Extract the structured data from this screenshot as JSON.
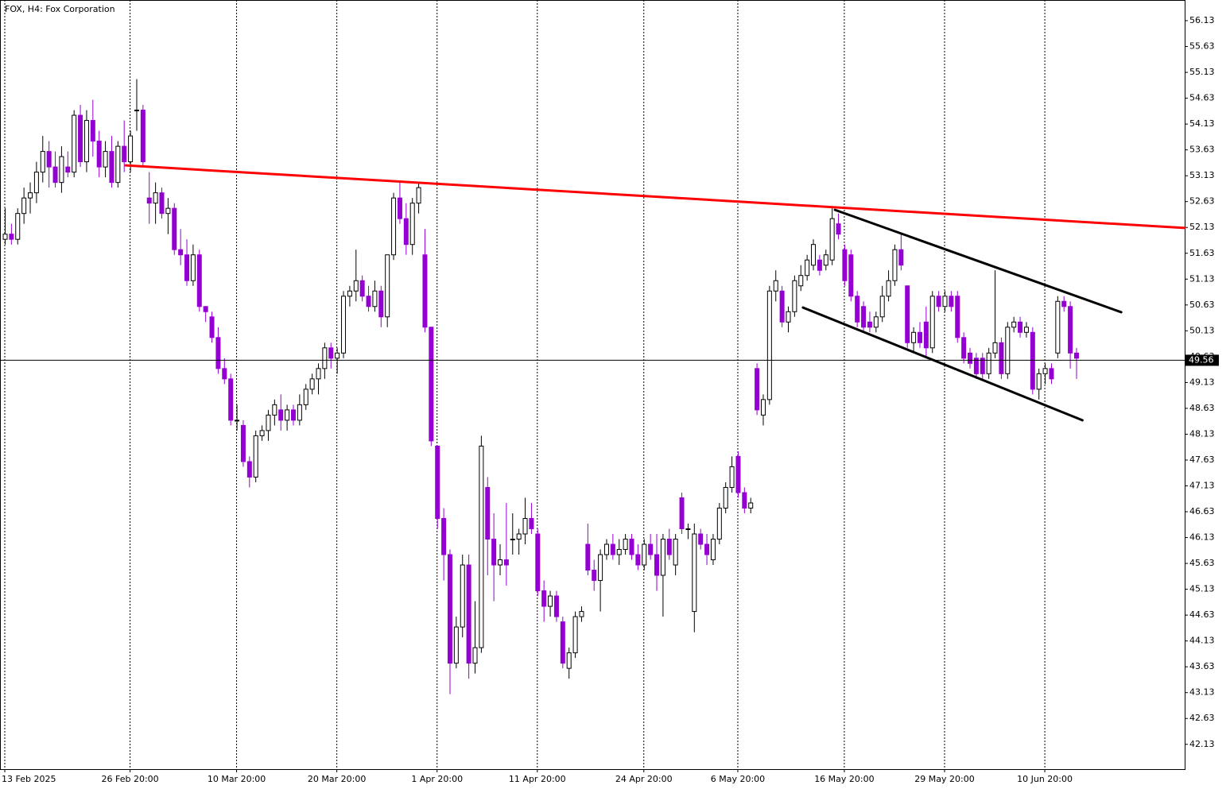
{
  "chart_data": {
    "type": "candlestick",
    "title": "FOX, H4:  Fox Corporation",
    "bull_color": "#ffffff",
    "bear_color": "#9400d3",
    "outline_color": "#000000",
    "ylim": [
      41.65,
      56.53
    ],
    "yticks": [
      56.13,
      55.63,
      55.13,
      54.63,
      54.13,
      53.63,
      53.13,
      52.63,
      52.13,
      51.63,
      51.13,
      50.63,
      50.13,
      49.63,
      49.13,
      48.63,
      48.13,
      47.63,
      47.13,
      46.63,
      46.13,
      45.63,
      45.13,
      44.63,
      44.13,
      43.63,
      43.13,
      42.63,
      42.13
    ],
    "current_price": 49.56,
    "categories": [
      "13 Feb 2025",
      null,
      null,
      null,
      null,
      null,
      null,
      null,
      null,
      null,
      null,
      null,
      null,
      null,
      null,
      null,
      null,
      null,
      null,
      null,
      "26 Feb 20:00",
      null,
      null,
      null,
      null,
      null,
      null,
      null,
      null,
      null,
      null,
      null,
      null,
      null,
      null,
      null,
      null,
      "10 Mar 20:00",
      null,
      null,
      null,
      null,
      null,
      null,
      null,
      null,
      null,
      null,
      null,
      null,
      null,
      null,
      null,
      "20 Mar 20:00",
      null,
      null,
      null,
      null,
      null,
      null,
      null,
      null,
      null,
      null,
      null,
      null,
      null,
      null,
      null,
      "1 Apr 20:00",
      null,
      null,
      null,
      null,
      null,
      null,
      null,
      null,
      null,
      null,
      null,
      null,
      null,
      null,
      null,
      "11 Apr 20:00",
      null,
      null,
      null,
      null,
      null,
      null,
      null,
      null,
      null,
      null,
      null,
      null,
      null,
      null,
      null,
      null,
      "24 Apr 20:00",
      null,
      null,
      null,
      null,
      null,
      null,
      null,
      null,
      null,
      null,
      null,
      null,
      null,
      null,
      "6 May 20:00",
      null,
      null,
      null,
      null,
      null,
      null,
      null,
      null,
      null,
      null,
      null,
      null,
      null,
      null,
      null,
      null,
      "16 May 20:00",
      null,
      null,
      null,
      null,
      null,
      null,
      null,
      null,
      null,
      null,
      null,
      null,
      null,
      null,
      null,
      "29 May 20:00",
      null,
      null,
      null,
      null,
      null,
      null,
      null,
      null,
      null,
      null,
      null,
      null,
      null,
      null,
      null,
      "10 Jun 20:00",
      null,
      null,
      null,
      null,
      null
    ],
    "candles": [
      [
        51.9,
        52.5,
        51.8,
        52.0
      ],
      [
        52.0,
        52.2,
        51.8,
        51.9
      ],
      [
        51.9,
        52.5,
        51.8,
        52.4
      ],
      [
        52.4,
        52.9,
        52.2,
        52.7
      ],
      [
        52.7,
        53.0,
        52.4,
        52.8
      ],
      [
        52.8,
        53.4,
        52.6,
        53.2
      ],
      [
        53.2,
        53.9,
        53.0,
        53.6
      ],
      [
        53.6,
        53.8,
        52.9,
        53.3
      ],
      [
        53.3,
        53.6,
        52.9,
        53.0
      ],
      [
        53.0,
        53.7,
        52.8,
        53.5
      ],
      [
        53.3,
        53.6,
        53.1,
        53.2
      ],
      [
        53.2,
        54.4,
        53.1,
        54.3
      ],
      [
        54.3,
        54.5,
        53.3,
        53.4
      ],
      [
        53.4,
        54.4,
        53.2,
        54.2
      ],
      [
        54.2,
        54.6,
        53.5,
        53.8
      ],
      [
        53.8,
        54.0,
        53.1,
        53.3
      ],
      [
        53.3,
        53.8,
        53.1,
        53.6
      ],
      [
        53.6,
        53.9,
        52.9,
        53.0
      ],
      [
        53.0,
        53.8,
        52.9,
        53.7
      ],
      [
        53.7,
        54.2,
        53.2,
        53.4
      ],
      [
        53.4,
        54.0,
        53.2,
        53.9
      ],
      [
        54.4,
        55.0,
        54.0,
        54.4
      ],
      [
        54.4,
        54.5,
        53.3,
        53.4
      ],
      [
        52.7,
        53.2,
        52.2,
        52.6
      ],
      [
        52.6,
        53.0,
        52.2,
        52.8
      ],
      [
        52.8,
        52.9,
        52.3,
        52.4
      ],
      [
        52.4,
        52.7,
        52.0,
        52.5
      ],
      [
        52.5,
        52.6,
        51.6,
        51.7
      ],
      [
        51.7,
        52.1,
        51.4,
        51.6
      ],
      [
        51.6,
        51.9,
        51.0,
        51.1
      ],
      [
        51.1,
        51.8,
        51.0,
        51.6
      ],
      [
        51.6,
        51.7,
        50.5,
        50.6
      ],
      [
        50.6,
        50.6,
        50.3,
        50.5
      ],
      [
        50.4,
        50.5,
        49.9,
        50.0
      ],
      [
        50.0,
        50.2,
        49.3,
        49.4
      ],
      [
        49.4,
        49.6,
        49.1,
        49.2
      ],
      [
        49.2,
        49.3,
        48.3,
        48.4
      ],
      [
        48.4,
        48.7,
        48.2,
        48.4
      ],
      [
        48.3,
        48.4,
        47.5,
        47.6
      ],
      [
        47.6,
        47.7,
        47.1,
        47.3
      ],
      [
        47.3,
        48.2,
        47.2,
        48.1
      ],
      [
        48.1,
        48.3,
        48.0,
        48.2
      ],
      [
        48.2,
        48.6,
        48.0,
        48.5
      ],
      [
        48.5,
        48.8,
        48.3,
        48.7
      ],
      [
        48.6,
        48.9,
        48.2,
        48.4
      ],
      [
        48.4,
        48.7,
        48.2,
        48.6
      ],
      [
        48.6,
        48.7,
        48.3,
        48.4
      ],
      [
        48.4,
        48.9,
        48.3,
        48.7
      ],
      [
        48.7,
        49.1,
        48.6,
        49.0
      ],
      [
        49.0,
        49.3,
        48.9,
        49.2
      ],
      [
        49.2,
        49.5,
        48.9,
        49.4
      ],
      [
        49.4,
        49.9,
        49.2,
        49.8
      ],
      [
        49.8,
        49.9,
        49.4,
        49.6
      ],
      [
        49.6,
        49.8,
        49.3,
        49.7
      ],
      [
        49.7,
        50.9,
        49.6,
        50.8
      ],
      [
        50.8,
        51.0,
        50.6,
        50.9
      ],
      [
        50.9,
        51.7,
        50.7,
        51.1
      ],
      [
        51.1,
        51.2,
        50.7,
        50.8
      ],
      [
        50.8,
        51.0,
        50.5,
        50.6
      ],
      [
        50.6,
        51.1,
        50.5,
        50.9
      ],
      [
        50.9,
        51.0,
        50.2,
        50.4
      ],
      [
        50.4,
        51.6,
        50.2,
        51.6
      ],
      [
        51.6,
        52.8,
        51.5,
        52.7
      ],
      [
        52.7,
        53.0,
        52.2,
        52.3
      ],
      [
        52.3,
        52.6,
        51.6,
        51.8
      ],
      [
        51.8,
        52.7,
        51.6,
        52.6
      ],
      [
        52.6,
        53.0,
        52.4,
        52.9
      ],
      [
        51.6,
        52.1,
        50.1,
        50.2
      ],
      [
        50.2,
        50.2,
        47.9,
        48.0
      ],
      [
        47.9,
        47.9,
        46.3,
        46.5
      ],
      [
        46.5,
        46.7,
        45.3,
        45.8
      ],
      [
        45.8,
        45.9,
        43.1,
        43.7
      ],
      [
        43.7,
        44.6,
        43.6,
        44.4
      ],
      [
        44.4,
        45.8,
        44.2,
        45.6
      ],
      [
        45.6,
        45.8,
        43.4,
        43.7
      ],
      [
        43.7,
        44.9,
        43.5,
        44.0
      ],
      [
        44.0,
        48.1,
        43.9,
        47.9
      ],
      [
        47.1,
        47.3,
        45.4,
        46.1
      ],
      [
        46.1,
        46.6,
        44.9,
        45.6
      ],
      [
        45.6,
        46.0,
        45.4,
        45.7
      ],
      [
        45.7,
        46.8,
        45.2,
        45.6
      ],
      [
        46.1,
        46.6,
        45.8,
        46.1
      ],
      [
        46.1,
        46.3,
        45.8,
        46.2
      ],
      [
        46.2,
        46.9,
        46.0,
        46.5
      ],
      [
        46.5,
        46.8,
        46.2,
        46.3
      ],
      [
        46.2,
        46.3,
        45.0,
        45.1
      ],
      [
        45.1,
        45.3,
        44.5,
        44.8
      ],
      [
        44.8,
        45.1,
        44.6,
        45.0
      ],
      [
        45.0,
        45.1,
        44.5,
        44.6
      ],
      [
        44.5,
        44.6,
        43.6,
        43.7
      ],
      [
        43.6,
        44.0,
        43.4,
        43.9
      ],
      [
        43.9,
        44.7,
        43.8,
        44.6
      ],
      [
        44.6,
        44.8,
        44.5,
        44.7
      ],
      [
        46.0,
        46.4,
        45.4,
        45.5
      ],
      [
        45.5,
        45.7,
        45.1,
        45.3
      ],
      [
        45.3,
        45.9,
        44.7,
        45.8
      ],
      [
        45.8,
        46.1,
        45.7,
        46.0
      ],
      [
        46.0,
        46.2,
        45.7,
        45.8
      ],
      [
        45.8,
        46.1,
        45.6,
        45.9
      ],
      [
        45.9,
        46.2,
        45.8,
        46.1
      ],
      [
        46.1,
        46.2,
        45.7,
        45.8
      ],
      [
        45.8,
        46.0,
        45.5,
        45.6
      ],
      [
        45.6,
        46.1,
        45.5,
        46.0
      ],
      [
        46.0,
        46.2,
        45.7,
        45.8
      ],
      [
        45.8,
        46.2,
        45.1,
        45.4
      ],
      [
        45.4,
        46.2,
        44.6,
        46.1
      ],
      [
        46.1,
        46.3,
        45.7,
        45.8
      ],
      [
        45.6,
        46.2,
        45.4,
        46.1
      ],
      [
        46.9,
        47.0,
        46.2,
        46.3
      ],
      [
        46.3,
        46.4,
        46.1,
        46.3
      ],
      [
        44.7,
        46.4,
        44.3,
        46.2
      ],
      [
        46.2,
        46.3,
        45.9,
        46.0
      ],
      [
        46.0,
        46.2,
        45.6,
        45.8
      ],
      [
        45.7,
        46.2,
        45.6,
        46.1
      ],
      [
        46.1,
        46.8,
        46.0,
        46.7
      ],
      [
        46.7,
        47.2,
        46.6,
        47.1
      ],
      [
        47.1,
        47.7,
        47.0,
        47.5
      ],
      [
        47.7,
        47.8,
        46.9,
        47.0
      ],
      [
        47.0,
        47.1,
        46.6,
        46.7
      ],
      [
        46.7,
        46.9,
        46.6,
        46.8
      ],
      [
        49.4,
        49.5,
        48.5,
        48.6
      ],
      [
        48.5,
        48.9,
        48.3,
        48.8
      ],
      [
        48.8,
        51.0,
        48.7,
        50.9
      ],
      [
        50.9,
        51.3,
        50.7,
        51.1
      ],
      [
        50.9,
        51.0,
        50.2,
        50.3
      ],
      [
        50.3,
        50.6,
        50.1,
        50.5
      ],
      [
        50.5,
        51.2,
        50.4,
        51.1
      ],
      [
        51.0,
        51.4,
        50.9,
        51.2
      ],
      [
        51.2,
        51.6,
        51.1,
        51.5
      ],
      [
        51.4,
        51.9,
        51.3,
        51.8
      ],
      [
        51.5,
        51.6,
        51.2,
        51.3
      ],
      [
        51.4,
        51.7,
        51.3,
        51.6
      ],
      [
        51.5,
        52.5,
        51.4,
        52.3
      ],
      [
        52.2,
        52.4,
        51.9,
        52.0
      ],
      [
        51.7,
        51.8,
        51.0,
        51.1
      ],
      [
        51.6,
        51.7,
        50.7,
        50.8
      ],
      [
        50.8,
        50.9,
        50.2,
        50.3
      ],
      [
        50.6,
        50.7,
        50.1,
        50.2
      ],
      [
        50.3,
        50.5,
        50.1,
        50.2
      ],
      [
        50.2,
        50.5,
        50.1,
        50.4
      ],
      [
        50.4,
        51.0,
        50.3,
        50.8
      ],
      [
        50.8,
        51.3,
        50.7,
        51.1
      ],
      [
        51.1,
        51.8,
        51.0,
        51.7
      ],
      [
        51.7,
        52.0,
        51.3,
        51.4
      ],
      [
        51.0,
        51.0,
        49.8,
        49.9
      ],
      [
        49.9,
        50.2,
        49.7,
        50.1
      ],
      [
        50.1,
        50.3,
        49.8,
        49.9
      ],
      [
        50.3,
        50.6,
        49.6,
        49.8
      ],
      [
        49.8,
        50.9,
        49.7,
        50.8
      ],
      [
        50.8,
        50.9,
        50.5,
        50.6
      ],
      [
        50.6,
        50.9,
        50.5,
        50.8
      ],
      [
        50.8,
        50.9,
        50.5,
        50.6
      ],
      [
        50.8,
        50.9,
        49.9,
        50.0
      ],
      [
        50.0,
        50.1,
        49.5,
        49.6
      ],
      [
        49.7,
        49.8,
        49.4,
        49.5
      ],
      [
        49.6,
        49.7,
        49.2,
        49.3
      ],
      [
        49.6,
        49.7,
        49.2,
        49.3
      ],
      [
        49.3,
        49.8,
        49.2,
        49.7
      ],
      [
        49.7,
        51.3,
        49.6,
        49.9
      ],
      [
        49.9,
        50.0,
        49.2,
        49.3
      ],
      [
        49.3,
        50.3,
        49.2,
        50.2
      ],
      [
        50.2,
        50.4,
        50.1,
        50.3
      ],
      [
        50.3,
        50.4,
        50.0,
        50.1
      ],
      [
        50.1,
        50.3,
        50.0,
        50.2
      ],
      [
        50.1,
        50.2,
        48.9,
        49.0
      ],
      [
        49.0,
        49.4,
        48.8,
        49.3
      ],
      [
        49.3,
        49.5,
        49.1,
        49.4
      ],
      [
        49.4,
        49.5,
        49.1,
        49.2
      ],
      [
        49.7,
        50.8,
        49.6,
        50.7
      ],
      [
        50.7,
        50.8,
        50.5,
        50.6
      ],
      [
        50.6,
        50.7,
        49.4,
        49.7
      ],
      [
        49.7,
        49.8,
        49.2,
        49.6
      ]
    ],
    "trendlines": [
      {
        "color": "#ff0000",
        "points": [
          [
            19.3,
            53.33
          ],
          [
            188.3,
            52.12
          ]
        ]
      },
      {
        "color": "#000000",
        "points": [
          [
            132.5,
            52.47
          ],
          [
            178.2,
            50.49
          ]
        ]
      },
      {
        "color": "#000000",
        "points": [
          [
            127.4,
            50.58
          ],
          [
            172.0,
            48.4
          ]
        ]
      }
    ]
  }
}
